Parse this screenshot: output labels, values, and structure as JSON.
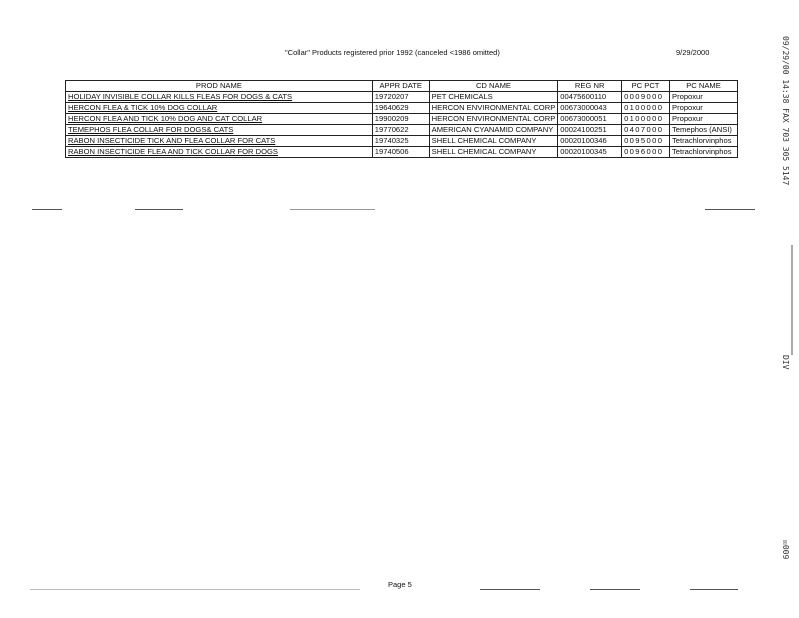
{
  "header": {
    "title": "\"Collar\" Products registered prior 1992 (canceled <1986 omitted)",
    "date": "9/29/2000"
  },
  "table": {
    "columns": [
      "PROD NAME",
      "APPR DATE",
      "CD NAME",
      "REG NR",
      "PC PCT",
      "PC NAME"
    ],
    "rows": [
      [
        "HOLIDAY INVISIBLE COLLAR KILLS FLEAS FOR DOGS & CATS",
        "19720207",
        "PET CHEMICALS",
        "00475600110",
        "0009000",
        "Propoxur"
      ],
      [
        "HERCON FLEA & TICK 10% DOG COLLAR",
        "19640629",
        "HERCON ENVIRONMENTAL CORP",
        "00673000043",
        "0100000",
        "Propoxur"
      ],
      [
        "HERCON FLEA AND TICK 10% DOG AND CAT COLLAR",
        "19900209",
        "HERCON ENVIRONMENTAL CORP",
        "00673000051",
        "0100000",
        "Propoxur"
      ],
      [
        "TEMEPHOS FLEA COLLAR FOR DOGS& CATS",
        "19770622",
        "AMERICAN CYANAMID COMPANY",
        "00024100251",
        "0407000",
        "Temephos (ANSI)"
      ],
      [
        "RABON INSECTICIDE TICK AND FLEA COLLAR FOR CATS",
        "19740325",
        "SHELL CHEMICAL COMPANY",
        "00020100346",
        "0095000",
        "Tetrachlorvinphos"
      ],
      [
        "RABON INSECTICIDE FLEA AND TICK COLLAR FOR DOGS",
        "19740506",
        "SHELL CHEMICAL COMPANY",
        "00020100345",
        "0096000",
        "Tetrachlorvinphos"
      ]
    ]
  },
  "footer": {
    "page": "Page 5"
  },
  "fax_header": {
    "stamp": "09/29/00  14:38 FAX 703 305 5147",
    "dept": "DIV",
    "page_no": "009"
  }
}
